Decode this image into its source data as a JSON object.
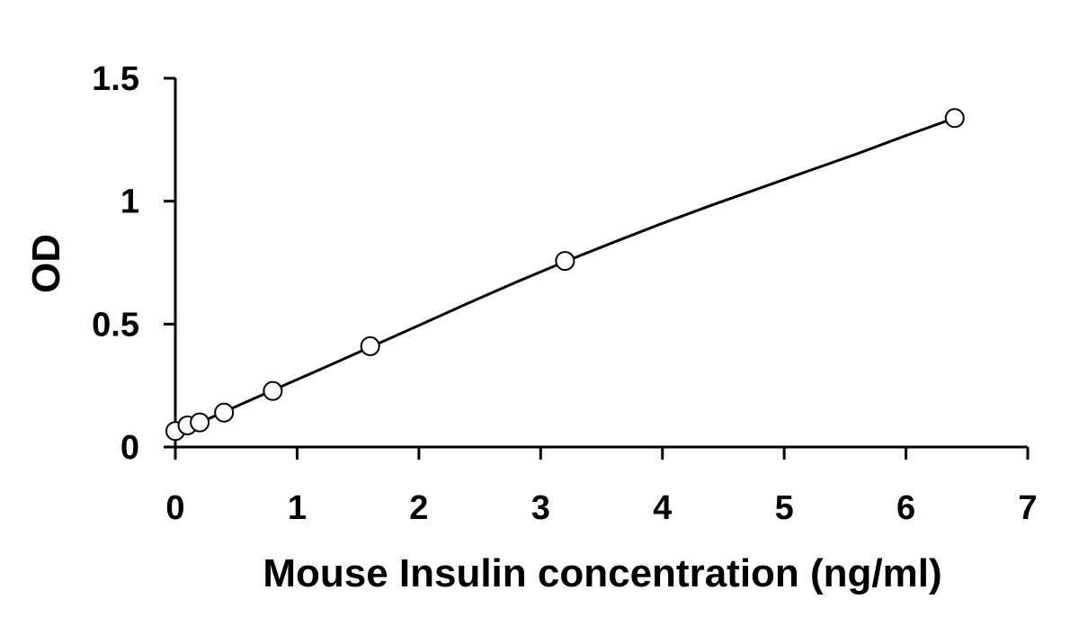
{
  "chart_data": {
    "type": "scatter",
    "title": "",
    "xlabel": "Mouse Insulin concentration (ng/ml)",
    "ylabel": "OD",
    "xlim": [
      0,
      7
    ],
    "ylim": [
      0,
      1.5
    ],
    "x_ticks": [
      0,
      1,
      2,
      3,
      4,
      5,
      6,
      7
    ],
    "x_tick_labels": [
      "0",
      "1",
      "2",
      "3",
      "4",
      "5",
      "6",
      "7"
    ],
    "y_ticks": [
      0,
      0.5,
      1,
      1.5
    ],
    "y_tick_labels": [
      "0",
      "0.5",
      "1",
      "1.5"
    ],
    "grid": false,
    "legend": "none",
    "series": [
      {
        "marker": "open-circle",
        "color": "#000000",
        "x": [
          0,
          0.1,
          0.2,
          0.4,
          0.8,
          1.6,
          3.2,
          6.4
        ],
        "y": [
          0.065,
          0.088,
          0.1,
          0.14,
          0.228,
          0.41,
          0.757,
          1.338
        ]
      }
    ],
    "trendline": {
      "color": "#000000",
      "x": [
        0,
        0.4,
        0.8,
        1.2,
        1.6,
        2.0,
        2.4,
        2.8,
        3.2,
        3.6,
        4.0,
        4.4,
        4.8,
        5.2,
        5.6,
        6.0,
        6.4
      ],
      "y": [
        0.055,
        0.143,
        0.231,
        0.318,
        0.406,
        0.495,
        0.584,
        0.671,
        0.754,
        0.833,
        0.91,
        0.983,
        1.053,
        1.123,
        1.193,
        1.267,
        1.338
      ]
    }
  }
}
